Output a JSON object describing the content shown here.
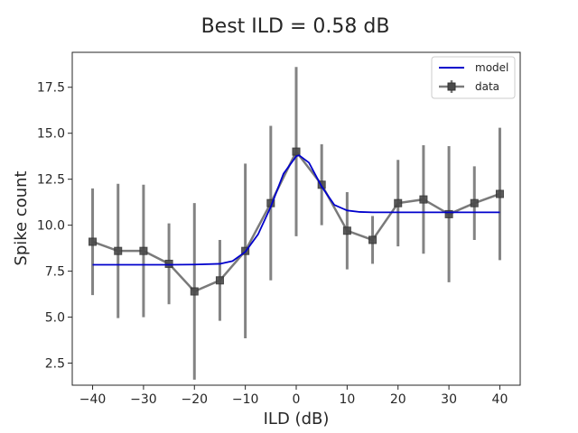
{
  "chart_data": {
    "type": "line",
    "title": "Best ILD = 0.58 dB",
    "xlabel": "ILD (dB)",
    "ylabel": "Spike count",
    "xlim": [
      -44,
      44
    ],
    "ylim": [
      1.3,
      19.4
    ],
    "xticks": [
      -40,
      -30,
      -20,
      -10,
      0,
      10,
      20,
      30,
      40
    ],
    "xtick_labels": [
      "−40",
      "−30",
      "−20",
      "−10",
      "0",
      "10",
      "20",
      "30",
      "40"
    ],
    "yticks": [
      2.5,
      5.0,
      7.5,
      10.0,
      12.5,
      15.0,
      17.5
    ],
    "ytick_labels": [
      "2.5",
      "5.0",
      "7.5",
      "10.0",
      "12.5",
      "15.0",
      "17.5"
    ],
    "grid": false,
    "legend_position": "top-right",
    "series": [
      {
        "name": "model",
        "style": "line",
        "color": "#0000cc",
        "x": [
          -40,
          -35,
          -30,
          -25,
          -20,
          -15,
          -12.5,
          -10,
          -7.5,
          -5,
          -2.5,
          0,
          0.58,
          2.5,
          5,
          7.5,
          10,
          12.5,
          15,
          20,
          25,
          30,
          35,
          40
        ],
        "y": [
          7.85,
          7.85,
          7.85,
          7.85,
          7.86,
          7.9,
          8.05,
          8.55,
          9.5,
          11.0,
          12.8,
          13.75,
          13.8,
          13.4,
          12.1,
          11.1,
          10.8,
          10.72,
          10.7,
          10.7,
          10.7,
          10.7,
          10.7,
          10.7
        ]
      },
      {
        "name": "data",
        "style": "errorbar",
        "color": "#7a7a7a",
        "x": [
          -40,
          -35,
          -30,
          -25,
          -20,
          -15,
          -10,
          -5,
          0,
          5,
          10,
          15,
          20,
          25,
          30,
          35,
          40
        ],
        "y": [
          9.1,
          8.6,
          8.6,
          7.9,
          6.4,
          7.0,
          8.6,
          11.2,
          14.0,
          12.2,
          9.7,
          9.2,
          11.2,
          11.4,
          10.6,
          11.2,
          11.7
        ],
        "yerr": [
          2.9,
          3.65,
          3.6,
          2.2,
          4.8,
          2.2,
          4.75,
          4.2,
          4.6,
          2.2,
          2.1,
          1.3,
          2.35,
          2.95,
          3.7,
          2.0,
          3.6
        ]
      }
    ]
  }
}
